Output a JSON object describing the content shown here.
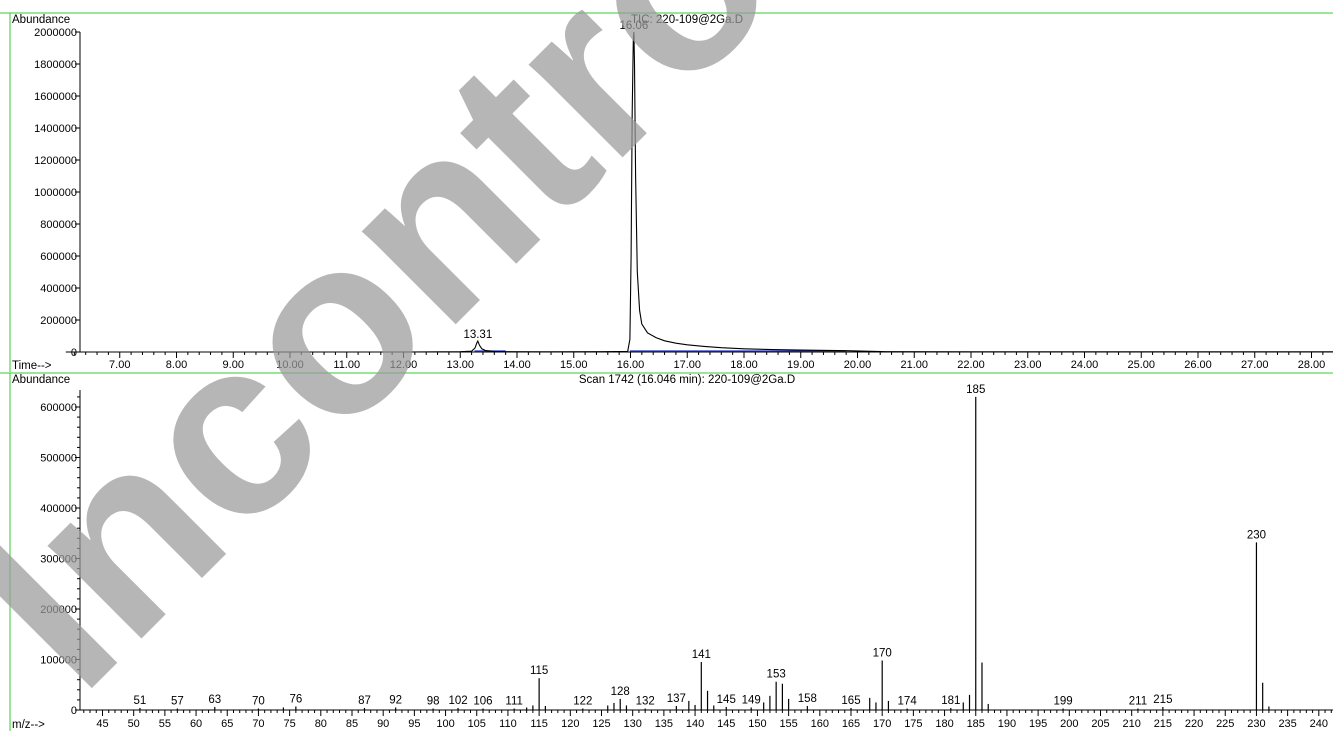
{
  "watermark": "Incontrolled",
  "chart_data": [
    {
      "type": "line",
      "title": "TIC: 220-109@2Ga.D",
      "ylabel": "Abundance",
      "xlabel": "Time-->",
      "xlim": [
        6.0,
        28.5
      ],
      "ylim": [
        0,
        2100000
      ],
      "x_ticks": [
        "7.00",
        "8.00",
        "9.00",
        "10.00",
        "11.00",
        "12.00",
        "13.00",
        "14.00",
        "15.00",
        "16.00",
        "17.00",
        "18.00",
        "19.00",
        "20.00",
        "21.00",
        "22.00",
        "23.00",
        "24.00",
        "25.00",
        "26.00",
        "27.00",
        "28.00"
      ],
      "y_ticks": [
        "0",
        "200000",
        "400000",
        "600000",
        "800000",
        "1000000",
        "1200000",
        "1400000",
        "1600000",
        "1800000",
        "2000000"
      ],
      "series": [
        {
          "color": "#000000",
          "x": [
            6.05,
            7.0,
            8.0,
            9.0,
            10.0,
            11.0,
            12.0,
            13.0,
            13.2,
            13.26,
            13.29,
            13.31,
            13.34,
            13.38,
            13.45,
            13.6,
            13.8,
            14.5,
            15.5,
            15.95,
            15.99,
            16.01,
            16.03,
            16.05,
            16.06,
            16.07,
            16.09,
            16.12,
            16.16,
            16.2,
            16.3,
            16.45,
            16.6,
            16.8,
            17.0,
            17.3,
            17.6,
            18.0,
            18.5,
            19.0,
            19.5,
            19.8,
            20.5,
            22.0,
            24.0,
            26.0,
            28.4
          ],
          "y": [
            0,
            0,
            0,
            0,
            0,
            0,
            0,
            2000,
            5000,
            25000,
            55000,
            68000,
            42000,
            20000,
            9000,
            4000,
            2000,
            1000,
            2000,
            4000,
            80000,
            600000,
            1500000,
            1950000,
            2000000,
            1800000,
            1100000,
            500000,
            260000,
            175000,
            120000,
            90000,
            70000,
            55000,
            45000,
            35000,
            27000,
            20000,
            15000,
            12000,
            10000,
            8000,
            2000,
            1500,
            1500,
            1200,
            1000
          ]
        }
      ],
      "annotations": [
        {
          "x": 13.31,
          "y": 68000,
          "text": "13.31"
        },
        {
          "x": 16.06,
          "y": 2000000,
          "text": "16.06"
        }
      ]
    },
    {
      "type": "bar",
      "title": "Scan 1742 (16.046 min): 220-109@2Ga.D",
      "ylabel": "Abundance",
      "xlabel": "m/z-->",
      "xlim": [
        40,
        242
      ],
      "ylim": [
        0,
        650000
      ],
      "x_ticks": [
        "45",
        "50",
        "55",
        "60",
        "65",
        "70",
        "75",
        "80",
        "85",
        "90",
        "95",
        "100",
        "105",
        "110",
        "115",
        "120",
        "125",
        "130",
        "135",
        "140",
        "145",
        "150",
        "155",
        "160",
        "165",
        "170",
        "175",
        "180",
        "185",
        "190",
        "195",
        "200",
        "205",
        "210",
        "215",
        "220",
        "225",
        "230",
        "235",
        "240"
      ],
      "y_ticks": [
        "0",
        "100000",
        "200000",
        "300000",
        "400000",
        "500000",
        "600000"
      ],
      "peaks": [
        {
          "mz": 51,
          "abundance": 4000,
          "label": "51"
        },
        {
          "mz": 57,
          "abundance": 3000,
          "label": "57"
        },
        {
          "mz": 63,
          "abundance": 6000,
          "label": "63"
        },
        {
          "mz": 70,
          "abundance": 3000,
          "label": "70"
        },
        {
          "mz": 74,
          "abundance": 5000
        },
        {
          "mz": 76,
          "abundance": 7000,
          "label": "76"
        },
        {
          "mz": 87,
          "abundance": 4000,
          "label": "87"
        },
        {
          "mz": 92,
          "abundance": 5000,
          "label": "92"
        },
        {
          "mz": 98,
          "abundance": 3000,
          "label": "98"
        },
        {
          "mz": 102,
          "abundance": 4000,
          "label": "102"
        },
        {
          "mz": 106,
          "abundance": 3000,
          "label": "106"
        },
        {
          "mz": 111,
          "abundance": 3000,
          "label": "111"
        },
        {
          "mz": 113,
          "abundance": 5000
        },
        {
          "mz": 114,
          "abundance": 9000
        },
        {
          "mz": 115,
          "abundance": 63000,
          "label": "115"
        },
        {
          "mz": 116,
          "abundance": 8000
        },
        {
          "mz": 122,
          "abundance": 3000,
          "label": "122"
        },
        {
          "mz": 126,
          "abundance": 9000
        },
        {
          "mz": 127,
          "abundance": 14000
        },
        {
          "mz": 128,
          "abundance": 22000,
          "label": "128"
        },
        {
          "mz": 129,
          "abundance": 9000
        },
        {
          "mz": 132,
          "abundance": 3000,
          "label": "132"
        },
        {
          "mz": 137,
          "abundance": 8000,
          "label": "137"
        },
        {
          "mz": 139,
          "abundance": 18000
        },
        {
          "mz": 140,
          "abundance": 10000
        },
        {
          "mz": 141,
          "abundance": 95000,
          "label": "141"
        },
        {
          "mz": 142,
          "abundance": 38000
        },
        {
          "mz": 143,
          "abundance": 9000
        },
        {
          "mz": 145,
          "abundance": 6000,
          "label": "145"
        },
        {
          "mz": 149,
          "abundance": 5000,
          "label": "149"
        },
        {
          "mz": 151,
          "abundance": 15000
        },
        {
          "mz": 152,
          "abundance": 28000
        },
        {
          "mz": 153,
          "abundance": 56000,
          "label": "153"
        },
        {
          "mz": 154,
          "abundance": 52000
        },
        {
          "mz": 155,
          "abundance": 22000
        },
        {
          "mz": 158,
          "abundance": 8000,
          "label": "158"
        },
        {
          "mz": 165,
          "abundance": 4000,
          "label": "165"
        },
        {
          "mz": 168,
          "abundance": 24000
        },
        {
          "mz": 169,
          "abundance": 15000
        },
        {
          "mz": 170,
          "abundance": 98000,
          "label": "170"
        },
        {
          "mz": 171,
          "abundance": 18000
        },
        {
          "mz": 174,
          "abundance": 3000,
          "label": "174"
        },
        {
          "mz": 181,
          "abundance": 4000,
          "label": "181"
        },
        {
          "mz": 183,
          "abundance": 15000
        },
        {
          "mz": 184,
          "abundance": 30000
        },
        {
          "mz": 185,
          "abundance": 620000,
          "label": "185"
        },
        {
          "mz": 186,
          "abundance": 94000
        },
        {
          "mz": 187,
          "abundance": 12000
        },
        {
          "mz": 199,
          "abundance": 3000,
          "label": "199"
        },
        {
          "mz": 211,
          "abundance": 3000,
          "label": "211"
        },
        {
          "mz": 215,
          "abundance": 6000,
          "label": "215"
        },
        {
          "mz": 230,
          "abundance": 332000,
          "label": "230"
        },
        {
          "mz": 231,
          "abundance": 54000
        },
        {
          "mz": 232,
          "abundance": 7000
        }
      ]
    }
  ]
}
